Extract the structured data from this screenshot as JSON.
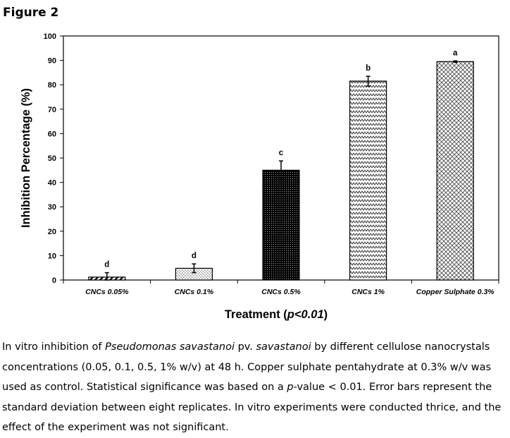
{
  "figure_label": "Figure 2",
  "caption": {
    "p1": "In vitro inhibition of ",
    "i1": "Pseudomonas savastanoi",
    "p2": " pv. ",
    "i2": "savastanoi",
    "p3": " by different cellulose nanocrystals concentrations (0.05, 0.1, 0.5, 1% w/v) at 48 h. Copper sulphate pentahydrate at 0.3% w/v was used as control. Statistical significance was based on a ",
    "i3": "p",
    "p4": "-value < 0.01. Error bars represent the standard deviation between eight replicates. In vitro experiments were conducted thrice, and the effect of the experiment was not significant."
  },
  "chart_data": {
    "type": "bar",
    "title": "",
    "xlabel_main": "Treatment (",
    "xlabel_italic": "p<0.01",
    "xlabel_close": ")",
    "ylabel": "Inhibition Percentage (%)",
    "ylim": [
      0,
      100
    ],
    "yticks": [
      0,
      10,
      20,
      30,
      40,
      50,
      60,
      70,
      80,
      90,
      100
    ],
    "grid": false,
    "categories": [
      "CNCs 0.05%",
      "CNCs 0.1%",
      "CNCs 0.5%",
      "CNCs 1%",
      "Copper Sulphate 0.3%"
    ],
    "values": [
      1.2,
      4.8,
      45,
      81.5,
      89.5
    ],
    "errors": [
      1.8,
      1.8,
      3.8,
      2.0,
      0.3
    ],
    "letters": [
      "d",
      "d",
      "c",
      "b",
      "a"
    ],
    "patterns": [
      "diagonal-stripes",
      "dots-light",
      "dots-dense",
      "zigzag",
      "crosshatch"
    ]
  }
}
